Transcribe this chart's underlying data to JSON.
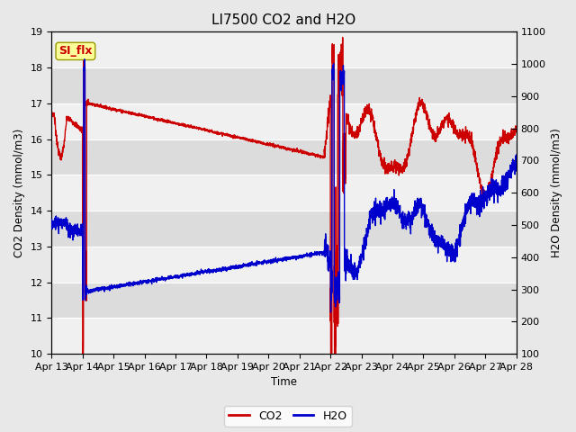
{
  "title": "LI7500 CO2 and H2O",
  "xlabel": "Time",
  "ylabel_left": "CO2 Density (mmol/m3)",
  "ylabel_right": "H2O Density (mmol/m3)",
  "ylim_left": [
    10.0,
    19.0
  ],
  "ylim_right": [
    100,
    1100
  ],
  "yticks_left": [
    10.0,
    11.0,
    12.0,
    13.0,
    14.0,
    15.0,
    16.0,
    17.0,
    18.0,
    19.0
  ],
  "yticks_right": [
    100,
    200,
    300,
    400,
    500,
    600,
    700,
    800,
    900,
    1000,
    1100
  ],
  "xtick_labels": [
    "Apr 13",
    "Apr 14",
    "Apr 15",
    "Apr 16",
    "Apr 17",
    "Apr 18",
    "Apr 19",
    "Apr 20",
    "Apr 21",
    "Apr 22",
    "Apr 23",
    "Apr 24",
    "Apr 25",
    "Apr 26",
    "Apr 27",
    "Apr 28"
  ],
  "co2_color": "#cc0000",
  "h2o_color": "#0000cc",
  "annotation_text": "SI_flx",
  "annotation_color": "#cc0000",
  "annotation_bg": "#ffff99",
  "annotation_border": "#999900",
  "fig_bg_color": "#e8e8e8",
  "plot_bg_color": "#f0f0f0",
  "band_light": "#dcdcdc",
  "band_dark": "#f0f0f0",
  "grid_color": "#ffffff",
  "linewidth": 1.0,
  "title_fontsize": 11,
  "label_fontsize": 8.5,
  "tick_fontsize": 8
}
